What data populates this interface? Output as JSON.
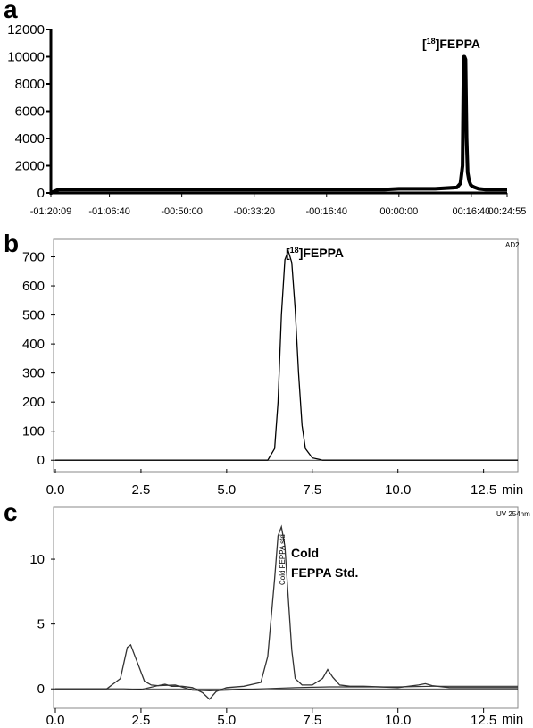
{
  "chart_data": [
    {
      "panel": "a",
      "type": "line",
      "x_ticks": [
        "-01:20:09",
        "-01:06:40",
        "-00:50:00",
        "-00:33:20",
        "-00:16:40",
        "00:00:00",
        "00:16:40",
        "00:24:55"
      ],
      "x_tick_values": [
        -4809,
        -4000,
        -3000,
        -2000,
        -1000,
        0,
        1000,
        1495
      ],
      "xlim": [
        -4809,
        1495
      ],
      "ylim": [
        0,
        12000
      ],
      "y_ticks": [
        0,
        2000,
        4000,
        6000,
        8000,
        10000,
        12000
      ],
      "peak_label": "[18]FEPPA",
      "peak_label_main": "FEPPA",
      "peak_label_sup": "18",
      "series": [
        {
          "x": [
            -4809,
            -4700,
            -4600,
            -4000,
            -3800,
            -3000,
            -2500,
            -2000,
            -1500,
            -1000,
            -500,
            -200,
            0,
            200,
            500,
            800,
            850,
            880,
            890,
            900,
            905,
            920,
            935,
            950,
            970,
            990,
            1010,
            1050,
            1100,
            1200,
            1300,
            1495
          ],
          "y": [
            0,
            250,
            250,
            250,
            250,
            250,
            250,
            250,
            250,
            250,
            250,
            250,
            300,
            300,
            300,
            400,
            700,
            2000,
            8000,
            10000,
            10000,
            9800,
            4000,
            1500,
            900,
            600,
            500,
            400,
            300,
            250,
            250,
            250
          ]
        }
      ]
    },
    {
      "panel": "b",
      "type": "line",
      "x_ticks": [
        "0.0",
        "2.5",
        "5.0",
        "7.5",
        "10.0",
        "12.5"
      ],
      "x_tick_values": [
        0,
        2.5,
        5,
        7.5,
        10,
        12.5
      ],
      "x_unit": "min",
      "xlim": [
        0,
        13.5
      ],
      "ylim": [
        -30,
        760
      ],
      "y_ticks": [
        0,
        100,
        200,
        300,
        400,
        500,
        600,
        700
      ],
      "peak_label": "[18]FEPPA",
      "peak_label_main": "FEPPA",
      "peak_label_sup": "18",
      "corner_label": "AD2",
      "series": [
        {
          "x": [
            0,
            6.2,
            6.4,
            6.5,
            6.6,
            6.7,
            6.8,
            6.9,
            7.0,
            7.1,
            7.2,
            7.3,
            7.5,
            7.7,
            7.8,
            13.5
          ],
          "y": [
            0,
            0,
            40,
            200,
            500,
            690,
            720,
            680,
            520,
            300,
            120,
            40,
            8,
            3,
            0,
            0
          ]
        }
      ]
    },
    {
      "panel": "c",
      "type": "line",
      "x_ticks": [
        "0.0",
        "2.5",
        "5.0",
        "7.5",
        "10.0",
        "12.5"
      ],
      "x_tick_values": [
        0,
        2.5,
        5,
        7.5,
        10,
        12.5
      ],
      "x_unit": "min",
      "xlim": [
        0,
        13.5
      ],
      "ylim": [
        -1.5,
        14
      ],
      "y_ticks": [
        0,
        5,
        10
      ],
      "peak_label_line1": "Cold",
      "peak_label_line2": "FEPPA Std.",
      "rotated_label": "Cold FEPPA std",
      "corner_label": "UV 254nm",
      "series": [
        {
          "x": [
            0,
            1.5,
            1.9,
            2.1,
            2.2,
            2.4,
            2.6,
            2.8,
            3.0,
            3.2,
            3.4,
            3.7,
            4.0,
            4.3,
            4.5,
            4.7,
            5.0,
            5.5,
            6.0,
            6.2,
            6.4,
            6.5,
            6.6,
            6.7,
            6.8,
            6.9,
            7.0,
            7.2,
            7.5,
            7.8,
            7.95,
            8.1,
            8.3,
            8.6,
            9.0,
            10.0,
            10.6,
            10.8,
            11.0,
            11.5,
            13.5
          ],
          "y": [
            0,
            0,
            0.8,
            3.2,
            3.4,
            2.0,
            0.6,
            0.3,
            0.25,
            0.35,
            0.2,
            0.2,
            0.1,
            -0.3,
            -0.8,
            -0.2,
            0.1,
            0.2,
            0.5,
            2.5,
            8.5,
            11.8,
            12.5,
            11.0,
            7.0,
            3.0,
            0.8,
            0.3,
            0.3,
            0.8,
            1.5,
            0.9,
            0.3,
            0.2,
            0.2,
            0.1,
            0.3,
            0.4,
            0.25,
            0.1,
            0.1
          ]
        },
        {
          "x": [
            0,
            2.0,
            2.5,
            3.0,
            3.5,
            4.0,
            4.5,
            5.0,
            6.0,
            7.0,
            8.0,
            9.0,
            10.0,
            11.0,
            12.0,
            13.5
          ],
          "y": [
            0,
            0,
            -0.05,
            0.25,
            0.3,
            -0.1,
            -0.15,
            -0.1,
            0,
            0.1,
            0.15,
            0.15,
            0.15,
            0.2,
            0.2,
            0.2
          ]
        }
      ]
    }
  ]
}
